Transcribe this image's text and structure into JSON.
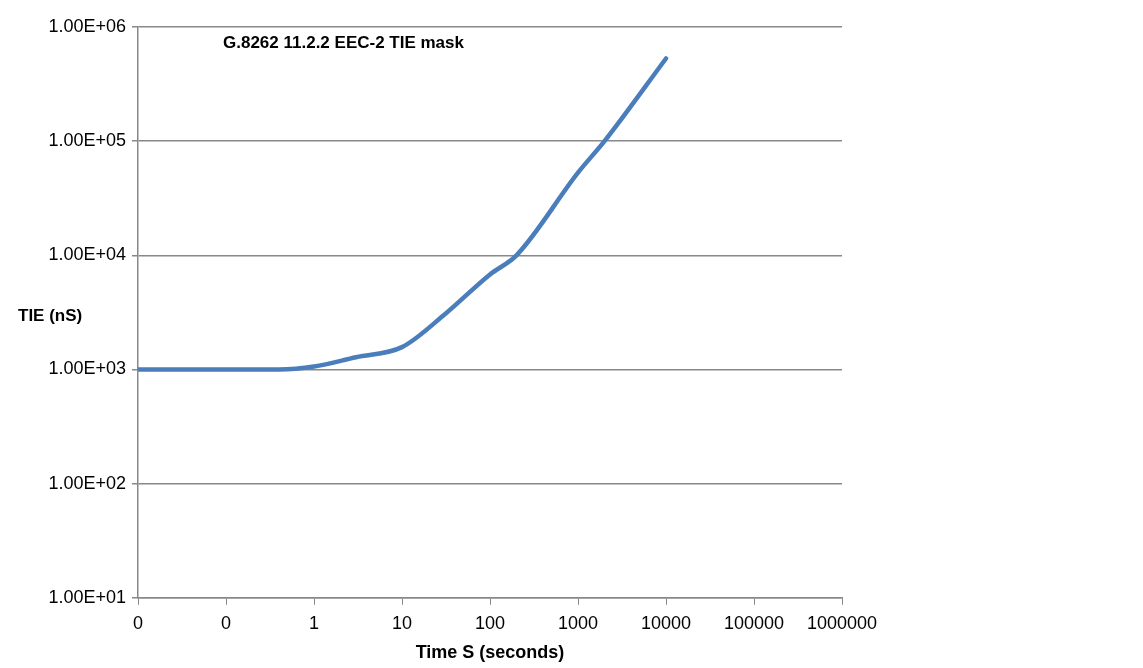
{
  "chart_data": {
    "type": "line",
    "title": "G.8262 11.2.2 EEC-2 TIE mask",
    "xlabel": "Time S (seconds)",
    "ylabel": "TIE (nS)",
    "log": "xy",
    "xlim": [
      0.01,
      1000000
    ],
    "xticks": [
      {
        "value": 0.01,
        "label": "0"
      },
      {
        "value": 0.1,
        "label": "0"
      },
      1,
      10,
      100,
      1000,
      10000,
      100000,
      1000000
    ],
    "ylim": [
      10,
      1000000
    ],
    "yticks": [
      {
        "value": 10,
        "label": "1.00E+01"
      },
      {
        "value": 100,
        "label": "1.00E+02"
      },
      {
        "value": 1000,
        "label": "1.00E+03"
      },
      {
        "value": 10000,
        "label": "1.00E+04"
      },
      {
        "value": 100000,
        "label": "1.00E+05"
      },
      {
        "value": 1000000,
        "label": "1.00E+06"
      }
    ],
    "grid": "y",
    "legend": false,
    "marker": "none",
    "line_style": "solid",
    "series": [
      {
        "color": "#4a7ebb",
        "x": [
          0.01,
          0.1,
          0.4,
          1,
          3,
          10,
          30,
          100,
          200,
          1000,
          2000,
          10000
        ],
        "values": [
          1000,
          1000,
          1000,
          1060,
          1280,
          1570,
          3000,
          6800,
          10000,
          53000,
          100000,
          530000
        ]
      }
    ]
  }
}
